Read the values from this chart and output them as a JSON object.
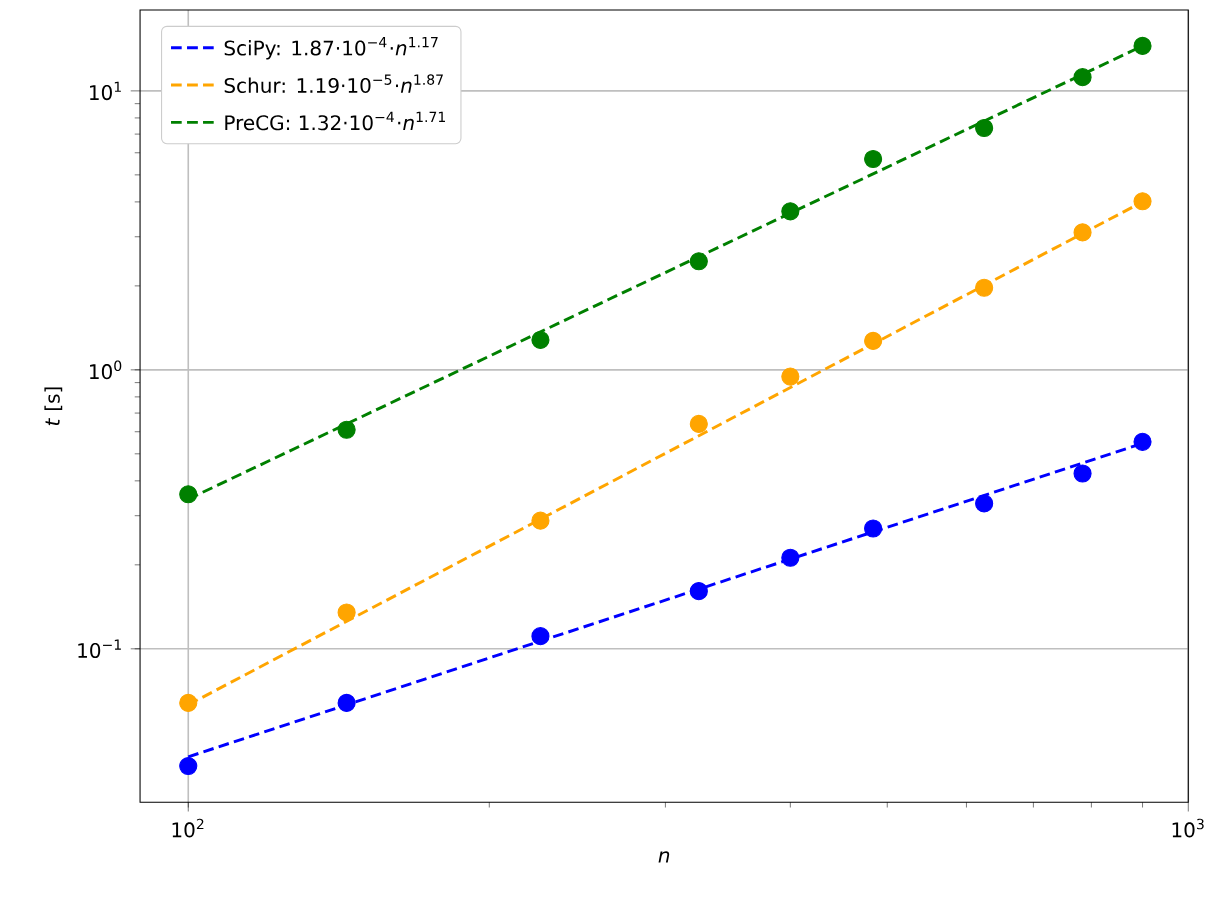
{
  "chart_data": {
    "type": "scatter",
    "xlabel": "n",
    "ylabel": "*t* [s]",
    "log": "xy",
    "grid": true,
    "legend": "top left",
    "xlim": [
      89.5,
      1000
    ],
    "ylim": [
      0.0282,
      19.5
    ],
    "xticks": [
      {
        "value": 100,
        "label": "10$^{2}$"
      },
      {
        "value": 1000,
        "label": "10$^{3}$"
      }
    ],
    "yticks": [
      {
        "value": 0.1,
        "label": "10$^{−1}$"
      },
      {
        "value": 1,
        "label": "10$^{0}$"
      },
      {
        "value": 10,
        "label": "10$^{1}$"
      }
    ],
    "series": [
      {
        "color": "#0000ff",
        "marker": "circle",
        "x": [
          100,
          144,
          225,
          324,
          400,
          484,
          625,
          784,
          900
        ],
        "values": [
          0.038,
          0.064,
          0.111,
          0.161,
          0.212,
          0.27,
          0.332,
          0.425,
          0.552
        ]
      },
      {
        "color": "#ffa500",
        "marker": "circle",
        "x": [
          100,
          144,
          225,
          324,
          400,
          484,
          625,
          784,
          900
        ],
        "values": [
          0.064,
          0.135,
          0.288,
          0.64,
          0.946,
          1.27,
          1.97,
          3.11,
          4.02
        ]
      },
      {
        "color": "#008000",
        "marker": "circle",
        "x": [
          100,
          144,
          225,
          324,
          400,
          484,
          625,
          784,
          900
        ],
        "values": [
          0.358,
          0.61,
          1.28,
          2.45,
          3.7,
          5.7,
          7.36,
          11.2,
          14.5
        ]
      },
      {
        "type": "line",
        "name": "SciPy: 1.87·10$^{−4}$·*n*$^{1.17}$",
        "color": "#0000ff",
        "line_style": "dashed",
        "marker": "none",
        "x": [
          100,
          900
        ],
        "values": [
          0.041,
          0.545
        ]
      },
      {
        "type": "line",
        "name": "Schur: 1.19·10$^{−5}$·*n*$^{1.87}$",
        "color": "#ffa500",
        "line_style": "dashed",
        "marker": "none",
        "x": [
          100,
          900
        ],
        "values": [
          0.063,
          4.0
        ]
      },
      {
        "type": "line",
        "name": "PreCG: 1.32·10$^{−4}$·*n*$^{1.71}$",
        "color": "#008000",
        "line_style": "dashed",
        "marker": "none",
        "x": [
          100,
          900
        ],
        "values": [
          0.344,
          14.5
        ]
      }
    ]
  }
}
